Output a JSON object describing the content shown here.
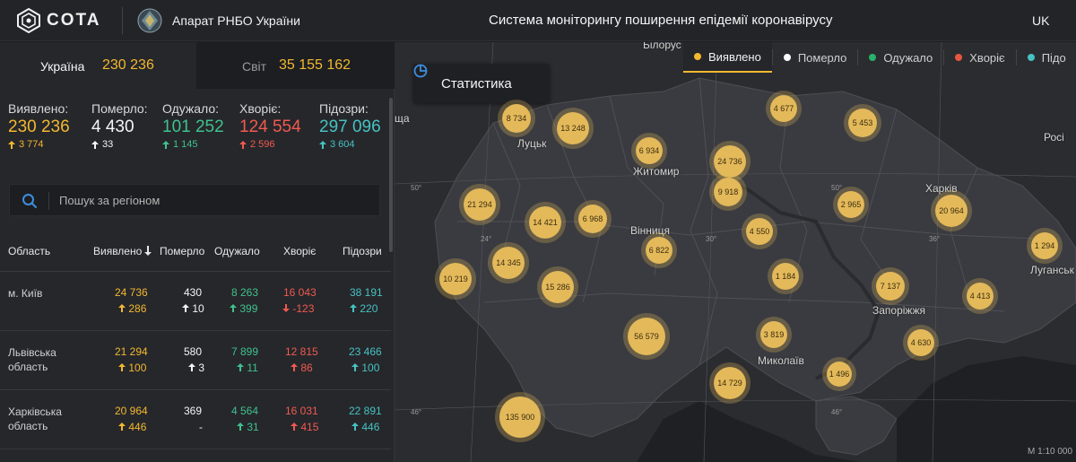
{
  "header": {
    "logo_text": "COTA",
    "org_name": "Апарат РНБО України",
    "system_title": "Система моніторингу поширення епідемії коронавірусу",
    "language": "UK"
  },
  "tabs": {
    "ukraine": {
      "label": "Україна",
      "value": "230 236"
    },
    "world": {
      "label": "Світ",
      "value": "35 155 162"
    }
  },
  "summary": [
    {
      "label": "Виявлено:",
      "value": "230 236",
      "delta": "3 774",
      "color": "#f2b830"
    },
    {
      "label": "Померло:",
      "value": "4 430",
      "delta": "33",
      "color": "#f5f5f5"
    },
    {
      "label": "Одужало:",
      "value": "101 252",
      "delta": "1 145",
      "color": "#3fc28d"
    },
    {
      "label": "Хворіє:",
      "value": "124 554",
      "delta": "2 596",
      "color": "#f05a4f"
    },
    {
      "label": "Підозри:",
      "value": "297 096",
      "delta": "3 604",
      "color": "#46c2c2"
    }
  ],
  "search": {
    "placeholder": "Пошук за регіоном"
  },
  "table": {
    "headers": {
      "region": "Область",
      "detected": "Виявлено",
      "died": "Померло",
      "recovered": "Одужало",
      "sick": "Хворіє",
      "suspected": "Підозри"
    },
    "rows": [
      {
        "region": "м. Київ",
        "region2": "",
        "detected": "24 736",
        "detected_d": "286",
        "died": "430",
        "died_d": "10",
        "recovered": "8 263",
        "recovered_d": "399",
        "sick": "16 043",
        "sick_d": "-123",
        "suspected": "38 191",
        "suspected_d": "220"
      },
      {
        "region": "Львівська",
        "region2": "область",
        "detected": "21 294",
        "detected_d": "100",
        "died": "580",
        "died_d": "3",
        "recovered": "7 899",
        "recovered_d": "11",
        "sick": "12 815",
        "sick_d": "86",
        "suspected": "23 466",
        "suspected_d": "100"
      },
      {
        "region": "Харківська",
        "region2": "область",
        "detected": "20 964",
        "detected_d": "446",
        "died": "369",
        "died_d": "-",
        "recovered": "4 564",
        "recovered_d": "31",
        "sick": "16 031",
        "sick_d": "415",
        "suspected": "22 891",
        "suspected_d": "446"
      }
    ]
  },
  "map": {
    "stats_button": "Статистика",
    "legend": [
      {
        "label": "Виявлено",
        "color": "#f2b830"
      },
      {
        "label": "Померло",
        "color": "#ffffff"
      },
      {
        "label": "Одужало",
        "color": "#27b36b"
      },
      {
        "label": "Хворіє",
        "color": "#e8553f"
      },
      {
        "label": "Підо",
        "color": "#46c2c2"
      }
    ],
    "clusters": [
      "8 734",
      "13 248",
      "4 677",
      "5 453",
      "6 934",
      "24 736",
      "9 918",
      "21 294",
      "14 421",
      "6 968",
      "2 965",
      "20 964",
      "4 550",
      "6 822",
      "14 345",
      "10 219",
      "15 286",
      "1 184",
      "7 137",
      "4 413",
      "1 294",
      "56 579",
      "3 819",
      "4 630",
      "1 496",
      "14 729",
      "135 900"
    ],
    "cities": {
      "lutsk": "Луцьк",
      "zhytomyr": "Житомир",
      "vinnytsia": "Вінниця",
      "kharkiv": "Харків",
      "zaporizhzhia": "Запоріжжя",
      "mykolaiv": "Миколаїв",
      "luhansk": "Луганськ",
      "russia": "Росі",
      "poland": "ща",
      "belarus": "Білорус"
    },
    "coords": {
      "lat50a": "50°",
      "lat50b": "50°",
      "lat46a": "46°",
      "lat46b": "46°",
      "lon24": "24°",
      "lon30": "30°",
      "lon36": "36°"
    },
    "scale": "M 1:10 000"
  }
}
